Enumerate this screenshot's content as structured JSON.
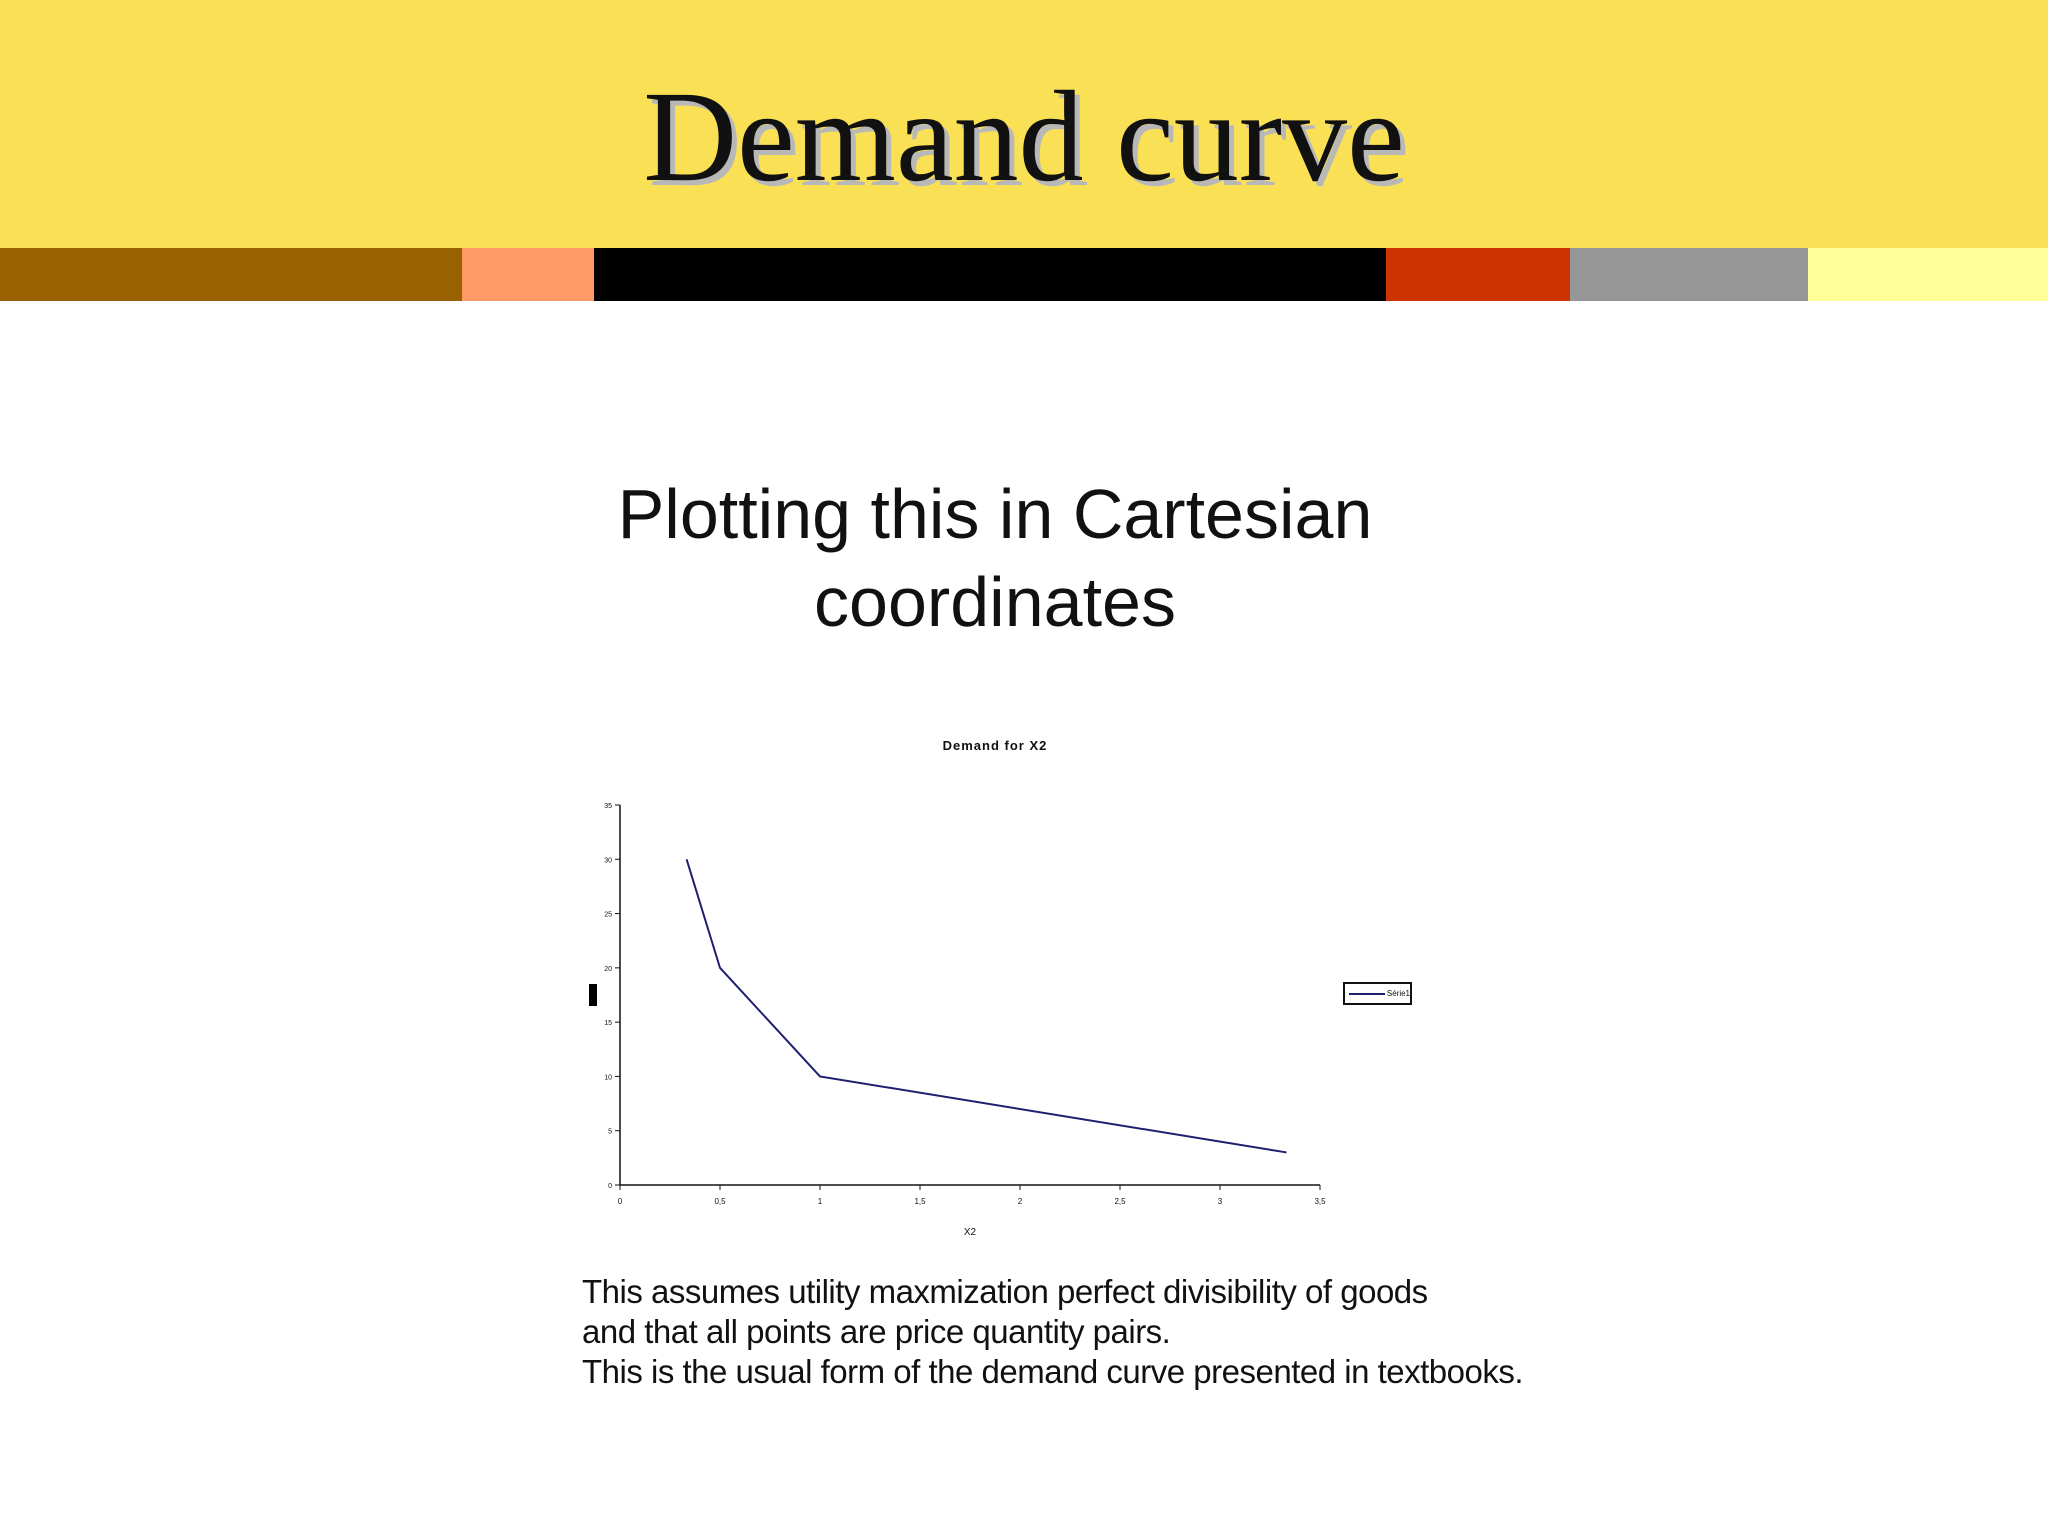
{
  "slide": {
    "title": "Demand curve",
    "subtitle_lines": [
      "Plotting this in Cartesian",
      "coordinates"
    ],
    "caption_lines": [
      "This assumes utility maxmization perfect divisibility of goods",
      "and that all points are price quantity pairs.",
      "This is the usual form of the demand curve presented in textbooks."
    ],
    "colors": {
      "header_background": "#f9e055",
      "bar_segments": [
        "#996100",
        "#ff9966",
        "#000000",
        "#cc3300",
        "#969696",
        "#ffff99"
      ]
    }
  },
  "chart_data": {
    "type": "line",
    "title": "Demand for X2",
    "xlabel": "X2",
    "ylabel": "",
    "xlim": [
      0,
      3.5
    ],
    "ylim": [
      0,
      35
    ],
    "x_ticks": [
      "0",
      "0,5",
      "1",
      "1,5",
      "2",
      "2,5",
      "3",
      "3,5"
    ],
    "y_ticks": [
      "0",
      "5",
      "10",
      "15",
      "20",
      "25",
      "30",
      "35"
    ],
    "grid": false,
    "legend_position": "right",
    "series": [
      {
        "name": "Série1",
        "color": "#1f1f70",
        "x": [
          0.333,
          0.5,
          1,
          3.333
        ],
        "y": [
          30,
          20,
          10,
          3
        ]
      }
    ]
  }
}
